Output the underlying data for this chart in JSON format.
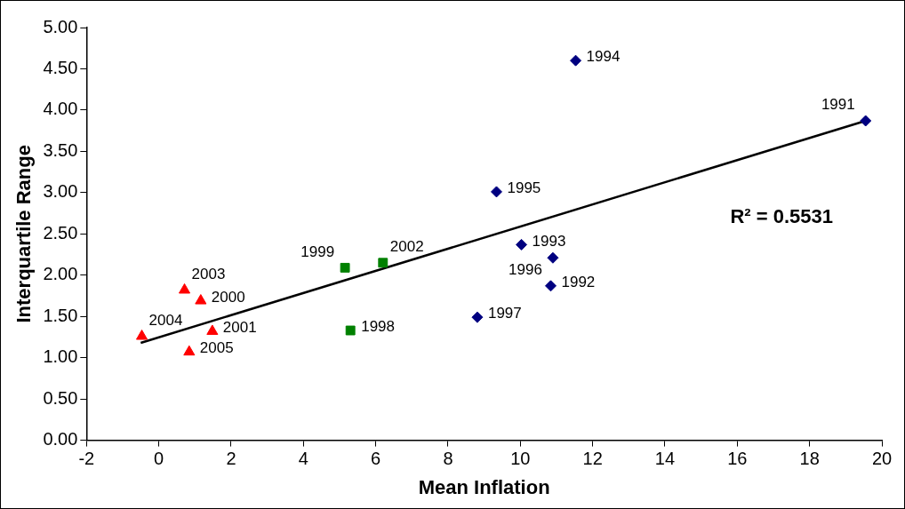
{
  "chart_data": {
    "type": "scatter",
    "xlabel": "Mean Inflation",
    "ylabel": "Interquartile Range",
    "xlim": [
      -2,
      20
    ],
    "xticks": [
      -2,
      0,
      2,
      4,
      6,
      8,
      10,
      12,
      14,
      16,
      18,
      20
    ],
    "ylim": [
      0,
      5
    ],
    "yticks": [
      {
        "value": 0,
        "label": "0.00"
      },
      {
        "value": 0.5,
        "label": "0.50"
      },
      {
        "value": 1,
        "label": "1.00"
      },
      {
        "value": 1.5,
        "label": "1.50"
      },
      {
        "value": 2,
        "label": "2.00"
      },
      {
        "value": 2.5,
        "label": "2.50"
      },
      {
        "value": 3,
        "label": "3.00"
      },
      {
        "value": 3.5,
        "label": "3.50"
      },
      {
        "value": 4,
        "label": "4.00"
      },
      {
        "value": 4.5,
        "label": "4.50"
      },
      {
        "value": 5,
        "label": "5.00"
      }
    ],
    "grid": false,
    "legend": false,
    "series": [
      {
        "color": "#000080",
        "marker": "diamond",
        "x": [
          19.55,
          10.84,
          10.03,
          11.53,
          9.34,
          10.9,
          8.81
        ],
        "values": [
          3.87,
          1.87,
          2.37,
          4.6,
          3.01,
          2.21,
          1.49
        ]
      },
      {
        "color": "#008000",
        "marker": "square",
        "x": [
          5.3,
          5.15,
          6.2
        ],
        "values": [
          1.33,
          2.09,
          2.15
        ]
      },
      {
        "color": "#ff0000",
        "marker": "triangle",
        "x": [
          1.16,
          1.48,
          0.71,
          -0.47,
          0.84
        ],
        "values": [
          1.69,
          1.32,
          1.82,
          1.26,
          1.07
        ]
      },
      {
        "type": "line",
        "color": "#000000",
        "marker": "none",
        "x": [
          -0.5,
          19.55
        ],
        "values": [
          1.18,
          3.87
        ]
      }
    ],
    "annotations": [
      {
        "text": "1991",
        "x": 19.55,
        "y": 3.87
      },
      {
        "text": "1992",
        "x": 10.84,
        "y": 1.87
      },
      {
        "text": "1993",
        "x": 10.03,
        "y": 2.37
      },
      {
        "text": "1994",
        "x": 11.53,
        "y": 4.6
      },
      {
        "text": "1995",
        "x": 9.34,
        "y": 3.01
      },
      {
        "text": "1996",
        "x": 10.9,
        "y": 2.21
      },
      {
        "text": "1997",
        "x": 8.81,
        "y": 1.49
      },
      {
        "text": "1998",
        "x": 5.3,
        "y": 1.33
      },
      {
        "text": "1999",
        "x": 5.15,
        "y": 2.09
      },
      {
        "text": "2002",
        "x": 6.2,
        "y": 2.15
      },
      {
        "text": "2000",
        "x": 1.16,
        "y": 1.69
      },
      {
        "text": "2001",
        "x": 1.48,
        "y": 1.32
      },
      {
        "text": "2003",
        "x": 0.71,
        "y": 1.82
      },
      {
        "text": "2004",
        "x": -0.47,
        "y": 1.26
      },
      {
        "text": "2005",
        "x": 0.84,
        "y": 1.07
      },
      "R² = 0.5531"
    ]
  }
}
